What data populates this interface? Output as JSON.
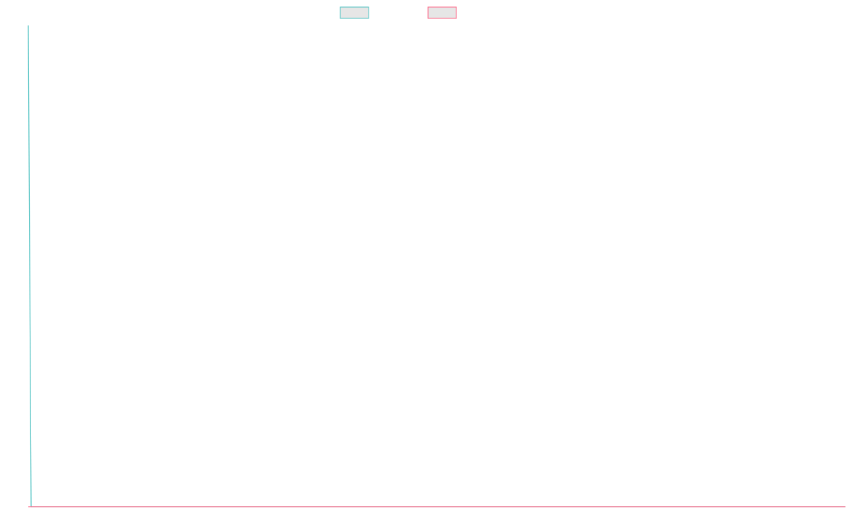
{
  "chart_data": {
    "type": "line",
    "title": "",
    "xlabel": "",
    "ylabel": "",
    "legend_position": "top-center",
    "grid": false,
    "x": [
      0,
      1
    ],
    "ylim": [
      0,
      1
    ],
    "series": [
      {
        "values": [
          1,
          0
        ],
        "color": "#4bc0c0",
        "legend_fill": "#e6e6e6"
      },
      {
        "values": [
          0,
          0
        ],
        "color": "#ff6384",
        "legend_fill": "#e6e6e6"
      }
    ]
  }
}
